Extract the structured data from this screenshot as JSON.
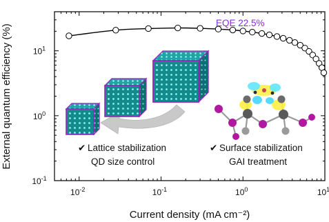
{
  "chart_data": {
    "type": "line",
    "xlabel": "Current density (mA cm⁻²)",
    "ylabel": "External quantum efficiency (%)",
    "x_scale": "log",
    "y_scale": "log",
    "xlim": [
      0.005,
      10
    ],
    "ylim": [
      0.1,
      40
    ],
    "x_major_ticks": [
      {
        "value": 0.01,
        "base": "10",
        "exp": "-2"
      },
      {
        "value": 0.1,
        "base": "10",
        "exp": "-1"
      },
      {
        "value": 1,
        "base": "10",
        "exp": "0"
      },
      {
        "value": 10,
        "base": "10",
        "exp": "1"
      }
    ],
    "y_major_ticks": [
      {
        "value": 0.1,
        "base": "10",
        "exp": "-1"
      },
      {
        "value": 1,
        "base": "10",
        "exp": "0"
      },
      {
        "value": 10,
        "base": "10",
        "exp": "1"
      }
    ],
    "series": [
      {
        "marker_color": "#ffffff",
        "line_color": "#000000",
        "points": [
          {
            "x": 0.0075,
            "y": 17.0
          },
          {
            "x": 0.028,
            "y": 20.8
          },
          {
            "x": 0.07,
            "y": 22.0
          },
          {
            "x": 0.16,
            "y": 22.5
          },
          {
            "x": 0.3,
            "y": 22.2
          },
          {
            "x": 0.5,
            "y": 21.6
          },
          {
            "x": 0.75,
            "y": 20.9
          },
          {
            "x": 1.0,
            "y": 20.2
          },
          {
            "x": 1.3,
            "y": 19.4
          },
          {
            "x": 1.7,
            "y": 18.5
          },
          {
            "x": 2.1,
            "y": 17.6
          },
          {
            "x": 2.6,
            "y": 16.6
          },
          {
            "x": 3.1,
            "y": 15.6
          },
          {
            "x": 3.7,
            "y": 14.5
          },
          {
            "x": 4.3,
            "y": 13.4
          },
          {
            "x": 5.0,
            "y": 12.2
          },
          {
            "x": 5.7,
            "y": 11.0
          },
          {
            "x": 6.4,
            "y": 9.8
          },
          {
            "x": 7.1,
            "y": 8.6
          },
          {
            "x": 7.8,
            "y": 7.5
          },
          {
            "x": 8.5,
            "y": 6.4
          },
          {
            "x": 9.2,
            "y": 5.5
          },
          {
            "x": 9.7,
            "y": 4.6
          }
        ]
      }
    ],
    "annotations": {
      "eqe_label": "EQE 22.5%",
      "lattice_label": "Lattice stabilization",
      "qd_label": "QD size control",
      "surface_label": "Surface stabilization",
      "gai_label": "GAI treatment",
      "check_mark": "✔"
    },
    "colors": {
      "eqe": "#8a2be2",
      "purple_check": "#9b30d9",
      "blue_check": "#1f8ed8",
      "cube_face": "#1a9a9a",
      "cube_dot": "#7fffff",
      "ligand": "#a020c0",
      "arrow": "#c8c8c8"
    },
    "grid": false
  }
}
